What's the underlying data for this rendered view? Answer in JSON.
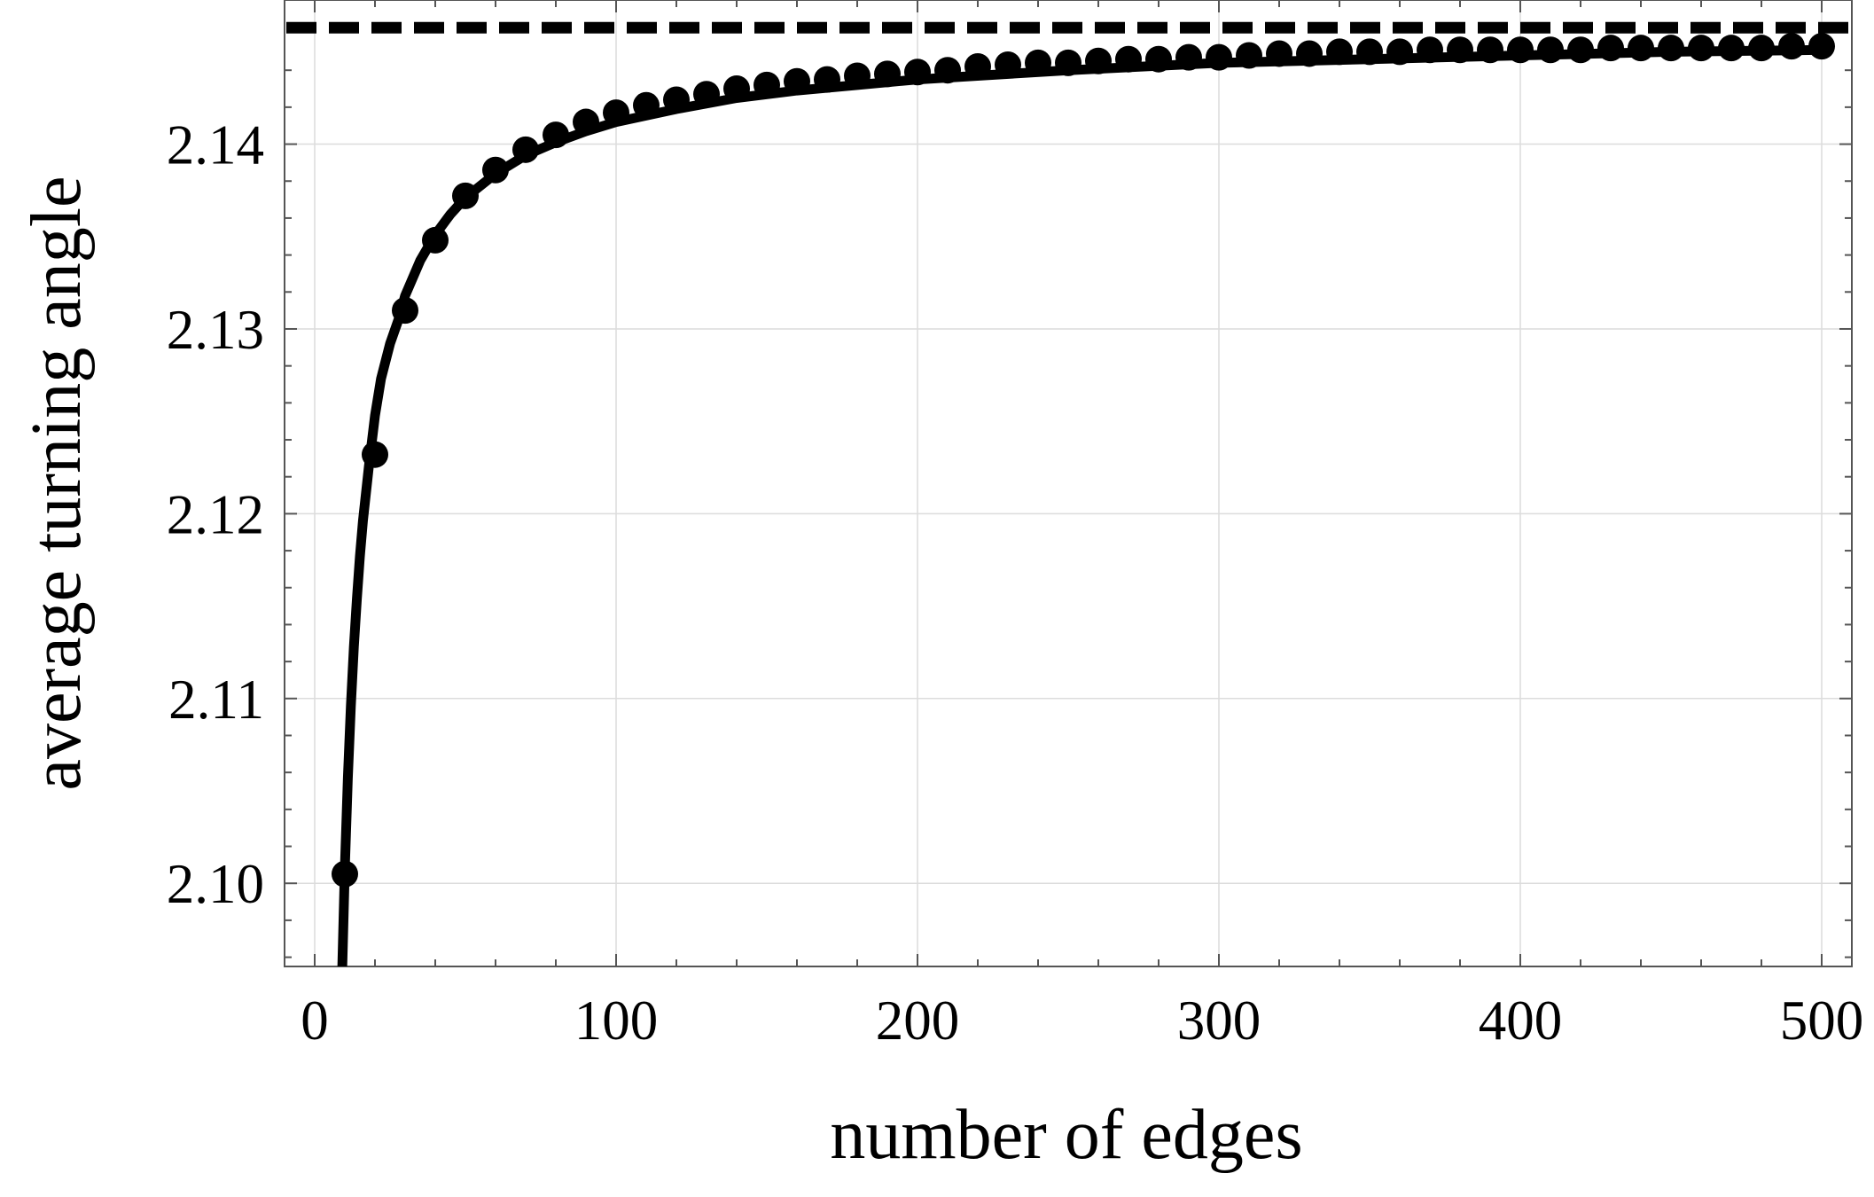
{
  "chart_data": {
    "type": "line",
    "title": "",
    "xlabel": "number of edges",
    "ylabel": "average turning angle",
    "xlim": [
      -10,
      510
    ],
    "ylim": [
      2.0955,
      2.1478
    ],
    "xticks": [
      0,
      100,
      200,
      300,
      400,
      500
    ],
    "xtick_labels": [
      "0",
      "100",
      "200",
      "300",
      "400",
      "500"
    ],
    "yticks": [
      2.1,
      2.11,
      2.12,
      2.13,
      2.14
    ],
    "ytick_labels": [
      "2.10",
      "2.11",
      "2.12",
      "2.13",
      "2.14"
    ],
    "grid": true,
    "asymptote": 2.1463,
    "series": [
      {
        "style": "curve",
        "x": [
          9,
          10,
          11,
          12,
          13,
          14,
          15,
          16,
          18,
          20,
          22,
          25,
          28,
          30,
          35,
          40,
          45,
          50,
          60,
          70,
          80,
          90,
          100,
          120,
          140,
          160,
          180,
          200,
          250,
          300,
          350,
          400,
          450,
          500
        ],
        "values": [
          2.0945,
          2.1008,
          2.1057,
          2.1096,
          2.1128,
          2.1154,
          2.1177,
          2.1196,
          2.1226,
          2.1253,
          2.1273,
          2.1292,
          2.1306,
          2.1318,
          2.1337,
          2.1351,
          2.1362,
          2.1371,
          2.1384,
          2.1394,
          2.1401,
          2.1407,
          2.1412,
          2.1419,
          2.1425,
          2.1429,
          2.1432,
          2.1435,
          2.144,
          2.1444,
          2.1446,
          2.1448,
          2.145,
          2.1451
        ]
      },
      {
        "style": "markers",
        "x": [
          10,
          20,
          30,
          40,
          50,
          60,
          70,
          80,
          90,
          100,
          110,
          120,
          130,
          140,
          150,
          160,
          170,
          180,
          190,
          200,
          210,
          220,
          230,
          240,
          250,
          260,
          270,
          280,
          290,
          300,
          310,
          320,
          330,
          340,
          350,
          360,
          370,
          380,
          390,
          400,
          410,
          420,
          430,
          440,
          450,
          460,
          470,
          480,
          490,
          500
        ],
        "values": [
          2.1005,
          2.1232,
          2.131,
          2.1348,
          2.1372,
          2.1386,
          2.1397,
          2.1405,
          2.1412,
          2.1417,
          2.1421,
          2.1424,
          2.1427,
          2.143,
          2.1432,
          2.1434,
          2.1435,
          2.1437,
          2.1438,
          2.1439,
          2.144,
          2.1442,
          2.1443,
          2.1444,
          2.1444,
          2.1445,
          2.1446,
          2.1446,
          2.1447,
          2.1447,
          2.1448,
          2.1449,
          2.1449,
          2.145,
          2.145,
          2.145,
          2.1451,
          2.1451,
          2.1451,
          2.1451,
          2.1451,
          2.1451,
          2.1452,
          2.1452,
          2.1452,
          2.1452,
          2.1452,
          2.1452,
          2.1453,
          2.1453
        ]
      }
    ]
  }
}
